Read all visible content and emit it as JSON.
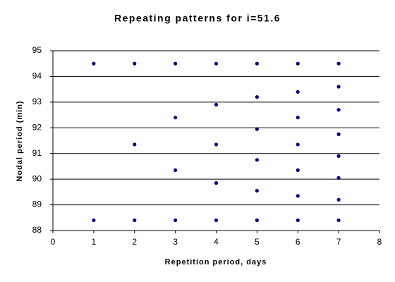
{
  "chart_data": {
    "type": "scatter",
    "title": "Repeating patterns for i=51.6",
    "x_label": "Repetition period, days",
    "y_label": "Nodal period (min)",
    "x": [
      1,
      1,
      2,
      2,
      2,
      3,
      3,
      3,
      3,
      4,
      4,
      4,
      4,
      4,
      5,
      5,
      5,
      5,
      5,
      5,
      6,
      6,
      6,
      6,
      6,
      6,
      6,
      7,
      7,
      7,
      7,
      7,
      7,
      7,
      7
    ],
    "values": [
      94.5,
      88.4,
      94.5,
      91.35,
      88.4,
      94.5,
      92.4,
      90.35,
      88.4,
      94.5,
      92.9,
      91.35,
      89.85,
      88.4,
      94.5,
      93.2,
      91.95,
      90.75,
      89.55,
      88.4,
      94.5,
      93.4,
      92.4,
      91.35,
      90.35,
      89.35,
      88.4,
      94.5,
      93.6,
      92.7,
      91.75,
      90.9,
      90.05,
      89.2,
      88.4
    ],
    "color": "#000080",
    "xlim": [
      0,
      8
    ],
    "xticks": [
      0,
      1,
      2,
      3,
      4,
      5,
      6,
      7,
      8
    ],
    "ylim": [
      88,
      95
    ],
    "yticks": [
      88,
      89,
      90,
      91,
      92,
      93,
      94,
      95
    ],
    "grid": true
  }
}
